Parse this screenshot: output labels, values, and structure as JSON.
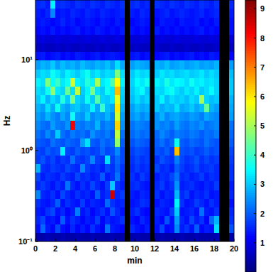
{
  "chart_data": {
    "type": "heatmap",
    "xlabel": "min",
    "ylabel": "Hz",
    "log": "y",
    "color": "jet",
    "xlim": [
      0,
      20
    ],
    "ylim": [
      0.1,
      45
    ],
    "xticks": [
      0,
      2,
      4,
      6,
      8,
      10,
      12,
      14,
      16,
      18,
      20
    ],
    "yticks": [
      {
        "value": 0.1,
        "label": "10⁻¹"
      },
      {
        "value": 1,
        "label": "10⁰"
      },
      {
        "value": 10,
        "label": "10¹"
      }
    ],
    "x_bins": [
      0,
      0.5,
      1,
      1.5,
      2,
      2.5,
      3,
      3.5,
      4,
      4.5,
      5,
      5.5,
      6,
      6.5,
      7,
      7.5,
      8,
      8.5,
      9,
      9.5,
      10,
      10.5,
      11,
      11.5,
      12,
      12.5,
      13,
      13.5,
      14,
      14.5,
      15,
      15.5,
      16,
      16.5,
      17,
      17.5,
      18,
      18.5,
      19,
      19.5,
      20
    ],
    "y_bins": [
      0.1,
      0.1244,
      0.1547,
      0.1925,
      0.2394,
      0.2979,
      0.3705,
      0.4609,
      0.5733,
      0.7132,
      0.8872,
      1.104,
      1.373,
      1.708,
      2.125,
      2.643,
      3.288,
      4.09,
      5.088,
      6.329,
      7.874,
      9.795,
      12.18,
      15.16,
      18.86,
      23.46,
      29.18,
      36.3,
      45
    ],
    "values": [
      [
        0.4,
        0.4,
        0.5,
        0.4,
        0.4,
        0.5,
        0.4,
        0.4,
        0.5,
        0.4,
        0.4,
        0.5,
        0.4,
        0.4,
        0.4,
        0.5,
        0.4,
        0.4,
        null,
        0.4,
        0.5,
        0.4,
        0.4,
        null,
        0.4,
        0.5,
        0.4,
        0.4,
        0.4,
        0.5,
        0.4,
        0.4,
        0.5,
        0.4,
        0.4,
        0.4,
        0.5,
        null,
        null,
        0.4
      ],
      [
        1.3,
        2.1,
        1.4,
        1.2,
        1.8,
        1.3,
        1.1,
        1.5,
        1.2,
        1.4,
        1.2,
        1.6,
        1.3,
        1.1,
        2.2,
        1.4,
        1.3,
        1.2,
        null,
        1.5,
        1.3,
        1.2,
        1.4,
        null,
        1.3,
        1.8,
        1.2,
        1.3,
        2.4,
        1.4,
        1.6,
        1.3,
        2.0,
        1.2,
        1.4,
        1.3,
        3.2,
        null,
        null,
        1.9
      ],
      [
        1.5,
        1.8,
        1.3,
        1.4,
        1.2,
        2.0,
        1.3,
        1.6,
        1.4,
        1.2,
        1.4,
        1.3,
        1.7,
        1.2,
        1.5,
        1.3,
        1.4,
        1.6,
        null,
        1.3,
        1.2,
        1.5,
        1.3,
        null,
        1.4,
        1.2,
        1.9,
        1.3,
        2.6,
        1.5,
        1.3,
        1.8,
        1.4,
        1.6,
        1.2,
        2.1,
        2.8,
        null,
        null,
        1.6
      ],
      [
        1.4,
        1.3,
        1.6,
        1.8,
        1.3,
        1.5,
        1.2,
        1.4,
        2.3,
        1.3,
        1.5,
        1.2,
        1.4,
        1.6,
        1.3,
        1.9,
        1.5,
        1.3,
        null,
        1.4,
        1.6,
        1.3,
        1.2,
        null,
        1.5,
        1.4,
        1.3,
        1.7,
        3.0,
        1.3,
        1.4,
        1.5,
        1.3,
        2.2,
        1.4,
        1.3,
        1.6,
        null,
        null,
        1.5
      ],
      [
        1.6,
        1.4,
        1.3,
        1.5,
        2.0,
        1.3,
        1.6,
        1.4,
        1.3,
        1.7,
        1.3,
        1.5,
        1.4,
        1.3,
        2.1,
        1.6,
        1.4,
        1.5,
        null,
        1.3,
        1.4,
        1.6,
        1.5,
        null,
        1.3,
        1.5,
        1.4,
        1.3,
        3.4,
        1.6,
        1.3,
        1.4,
        1.7,
        1.5,
        1.3,
        1.6,
        1.4,
        null,
        null,
        1.3
      ],
      [
        2.4,
        1.5,
        1.4,
        1.6,
        1.3,
        1.8,
        1.5,
        1.3,
        1.6,
        1.4,
        1.5,
        1.3,
        2.0,
        1.4,
        1.6,
        8.6,
        1.5,
        1.7,
        null,
        1.4,
        1.3,
        1.5,
        1.4,
        null,
        1.6,
        1.3,
        1.5,
        1.4,
        2.8,
        1.5,
        1.7,
        1.3,
        1.5,
        1.4,
        1.6,
        1.3,
        1.4,
        null,
        null,
        1.5
      ],
      [
        1.5,
        1.7,
        1.5,
        1.3,
        1.6,
        1.4,
        2.2,
        1.5,
        1.3,
        1.6,
        1.4,
        1.8,
        1.5,
        1.3,
        1.7,
        3.0,
        1.6,
        1.4,
        null,
        1.5,
        1.6,
        1.4,
        1.3,
        null,
        1.5,
        1.7,
        1.4,
        1.6,
        2.5,
        1.4,
        1.5,
        1.6,
        1.4,
        1.3,
        1.5,
        1.4,
        1.7,
        null,
        null,
        1.4
      ],
      [
        1.8,
        1.4,
        1.6,
        1.5,
        1.4,
        1.7,
        1.5,
        1.4,
        1.8,
        1.5,
        1.6,
        1.4,
        1.5,
        2.0,
        1.4,
        1.6,
        2.2,
        1.5,
        null,
        1.6,
        1.4,
        1.7,
        1.5,
        null,
        1.4,
        1.6,
        1.5,
        1.8,
        2.2,
        1.5,
        1.6,
        1.4,
        1.5,
        1.7,
        1.4,
        1.6,
        1.5,
        null,
        null,
        1.6
      ],
      [
        2.8,
        1.6,
        1.5,
        1.7,
        1.6,
        1.5,
        1.8,
        1.6,
        1.5,
        2.4,
        1.7,
        1.5,
        1.6,
        1.4,
        1.8,
        1.6,
        2.0,
        1.6,
        null,
        1.5,
        1.7,
        1.5,
        1.6,
        null,
        1.8,
        1.5,
        1.6,
        1.4,
        2.0,
        1.7,
        1.5,
        1.6,
        1.8,
        1.5,
        1.6,
        1.7,
        1.5,
        null,
        null,
        1.6
      ],
      [
        1.7,
        1.9,
        1.6,
        1.8,
        1.5,
        1.7,
        1.6,
        2.2,
        1.7,
        1.6,
        1.8,
        2.4,
        1.7,
        1.6,
        3.2,
        1.7,
        2.1,
        1.8,
        null,
        1.6,
        1.8,
        1.6,
        1.7,
        null,
        1.6,
        1.9,
        1.7,
        1.6,
        2.3,
        1.8,
        1.6,
        1.7,
        1.9,
        1.6,
        1.8,
        1.6,
        1.7,
        null,
        null,
        1.7
      ],
      [
        1.8,
        1.7,
        2.0,
        1.8,
        1.9,
        3.4,
        1.8,
        1.7,
        2.0,
        1.8,
        1.9,
        1.7,
        1.8,
        2.1,
        1.8,
        1.9,
        2.4,
        1.8,
        null,
        1.7,
        1.9,
        1.8,
        1.7,
        null,
        1.9,
        1.8,
        2.0,
        1.7,
        6.4,
        1.9,
        1.8,
        1.9,
        1.7,
        1.8,
        2.0,
        1.8,
        1.9,
        null,
        null,
        1.8
      ],
      [
        2.0,
        1.9,
        1.8,
        2.2,
        2.0,
        1.9,
        2.1,
        2.0,
        1.9,
        2.6,
        3.2,
        2.0,
        1.9,
        2.2,
        2.0,
        2.1,
        4.8,
        2.0,
        null,
        1.9,
        2.1,
        2.0,
        1.9,
        null,
        2.0,
        2.2,
        1.9,
        2.1,
        3.6,
        2.0,
        1.9,
        2.1,
        2.0,
        1.9,
        2.2,
        2.0,
        1.9,
        null,
        null,
        2.0
      ],
      [
        2.2,
        2.0,
        2.4,
        2.1,
        3.0,
        2.2,
        2.0,
        2.3,
        2.1,
        2.2,
        2.0,
        2.5,
        2.2,
        2.1,
        2.3,
        2.0,
        5.2,
        2.2,
        null,
        2.1,
        2.3,
        2.1,
        2.2,
        null,
        2.1,
        2.4,
        2.2,
        2.0,
        2.3,
        2.2,
        2.1,
        2.3,
        2.2,
        2.0,
        2.2,
        2.1,
        2.3,
        null,
        null,
        2.1
      ],
      [
        2.4,
        2.2,
        2.1,
        2.6,
        2.3,
        2.2,
        2.5,
        8.2,
        2.3,
        2.2,
        2.4,
        2.3,
        2.8,
        2.2,
        2.4,
        2.3,
        6.2,
        2.5,
        null,
        2.2,
        2.4,
        2.3,
        2.2,
        null,
        2.5,
        2.3,
        2.4,
        2.2,
        2.6,
        2.3,
        2.2,
        2.4,
        2.3,
        2.5,
        2.2,
        2.3,
        2.4,
        null,
        null,
        2.2
      ],
      [
        2.6,
        2.4,
        2.8,
        2.5,
        2.3,
        2.7,
        2.4,
        3.6,
        2.6,
        2.5,
        3.0,
        2.4,
        2.6,
        2.5,
        2.8,
        2.4,
        5.4,
        2.6,
        null,
        2.5,
        2.7,
        2.4,
        2.6,
        null,
        2.5,
        2.8,
        2.4,
        2.6,
        2.7,
        2.5,
        2.4,
        2.6,
        2.5,
        2.3,
        2.7,
        2.5,
        2.4,
        null,
        null,
        2.6
      ],
      [
        2.8,
        2.6,
        3.2,
        2.7,
        3.6,
        2.8,
        2.6,
        2.9,
        3.0,
        2.7,
        2.8,
        3.4,
        2.7,
        4.0,
        2.9,
        2.7,
        6.0,
        2.8,
        null,
        2.6,
        2.9,
        2.7,
        2.8,
        null,
        3.0,
        2.7,
        2.9,
        2.8,
        3.2,
        2.7,
        2.8,
        3.0,
        2.7,
        2.9,
        4.4,
        2.8,
        2.6,
        null,
        null,
        2.7
      ],
      [
        3.0,
        3.4,
        2.8,
        3.2,
        2.9,
        3.8,
        3.0,
        4.6,
        3.1,
        2.9,
        3.6,
        3.0,
        4.2,
        3.1,
        3.0,
        3.3,
        5.6,
        3.0,
        null,
        2.9,
        3.2,
        2.9,
        3.1,
        null,
        3.0,
        3.4,
        2.9,
        3.2,
        3.0,
        3.1,
        2.9,
        3.2,
        3.0,
        5.0,
        3.1,
        2.9,
        3.0,
        null,
        null,
        2.8
      ],
      [
        3.2,
        3.0,
        3.6,
        4.8,
        3.3,
        3.1,
        4.4,
        3.2,
        5.2,
        3.0,
        3.4,
        4.6,
        3.2,
        3.0,
        3.6,
        3.3,
        6.4,
        3.1,
        null,
        3.0,
        3.3,
        3.5,
        3.0,
        null,
        3.2,
        3.1,
        3.4,
        3.6,
        3.2,
        3.0,
        3.3,
        3.1,
        3.4,
        3.0,
        3.2,
        3.5,
        3.1,
        null,
        null,
        3.0
      ],
      [
        3.4,
        3.2,
        4.6,
        3.5,
        4.0,
        3.3,
        3.6,
        5.4,
        3.4,
        3.2,
        3.8,
        3.4,
        5.0,
        3.3,
        3.5,
        4.2,
        5.8,
        3.4,
        null,
        3.1,
        3.5,
        3.3,
        3.6,
        null,
        3.4,
        3.2,
        3.7,
        3.3,
        3.5,
        3.4,
        3.2,
        3.6,
        3.3,
        3.4,
        3.2,
        3.3,
        3.1,
        null,
        null,
        3.0
      ],
      [
        3.0,
        3.2,
        3.1,
        3.6,
        3.3,
        3.0,
        3.4,
        3.2,
        3.0,
        3.3,
        3.6,
        3.1,
        3.3,
        3.0,
        3.2,
        3.1,
        4.6,
        3.2,
        null,
        3.0,
        3.3,
        3.1,
        3.2,
        null,
        3.0,
        3.3,
        3.1,
        3.2,
        3.0,
        3.1,
        3.2,
        3.0,
        3.1,
        3.3,
        3.0,
        3.2,
        3.0,
        null,
        null,
        2.9
      ],
      [
        2.6,
        2.8,
        2.7,
        3.0,
        2.6,
        2.9,
        2.7,
        2.8,
        2.6,
        2.9,
        2.7,
        2.6,
        2.8,
        2.7,
        2.9,
        2.6,
        3.2,
        2.7,
        null,
        2.6,
        2.8,
        2.7,
        2.6,
        null,
        2.8,
        2.7,
        2.9,
        2.6,
        2.7,
        2.8,
        2.6,
        2.7,
        2.8,
        2.6,
        2.7,
        2.6,
        2.8,
        null,
        null,
        2.6
      ],
      [
        1.3,
        1.4,
        1.2,
        1.3,
        1.4,
        1.2,
        1.3,
        1.2,
        1.4,
        1.3,
        1.2,
        1.3,
        1.4,
        1.2,
        1.3,
        1.4,
        1.3,
        1.2,
        null,
        1.3,
        1.4,
        1.2,
        1.3,
        null,
        1.2,
        1.3,
        1.4,
        1.2,
        1.3,
        1.2,
        1.3,
        1.4,
        1.2,
        1.3,
        1.2,
        1.4,
        1.3,
        null,
        null,
        1.2
      ],
      [
        0.6,
        0.7,
        0.6,
        0.6,
        0.7,
        0.6,
        0.7,
        0.6,
        0.6,
        0.7,
        0.6,
        0.6,
        0.7,
        0.6,
        0.7,
        0.6,
        0.6,
        0.7,
        null,
        0.6,
        0.7,
        0.6,
        0.6,
        null,
        0.7,
        0.6,
        0.6,
        0.7,
        0.6,
        0.6,
        0.7,
        0.6,
        0.6,
        0.7,
        0.6,
        0.6,
        0.7,
        null,
        null,
        0.6
      ],
      [
        0.8,
        0.9,
        0.8,
        0.8,
        0.9,
        0.8,
        0.8,
        0.9,
        0.8,
        0.8,
        0.9,
        0.8,
        0.8,
        0.9,
        0.8,
        0.8,
        0.9,
        0.8,
        null,
        0.8,
        0.8,
        0.9,
        0.8,
        null,
        0.8,
        0.9,
        0.8,
        0.8,
        0.9,
        0.8,
        0.8,
        0.8,
        0.9,
        0.8,
        0.8,
        0.9,
        0.8,
        null,
        null,
        0.8
      ],
      [
        1.2,
        1.3,
        1.2,
        1.4,
        1.2,
        1.3,
        1.2,
        1.3,
        1.4,
        1.2,
        1.3,
        1.2,
        1.4,
        1.3,
        1.2,
        1.3,
        1.2,
        1.4,
        null,
        1.3,
        1.2,
        1.3,
        1.2,
        null,
        1.4,
        1.2,
        1.3,
        1.2,
        1.3,
        1.2,
        1.3,
        1.2,
        1.3,
        1.4,
        1.2,
        1.3,
        1.2,
        null,
        null,
        1.3
      ],
      [
        1.3,
        1.4,
        1.3,
        1.2,
        1.3,
        1.5,
        1.3,
        1.4,
        1.2,
        1.3,
        1.4,
        1.3,
        1.2,
        1.4,
        1.3,
        1.2,
        1.4,
        1.3,
        null,
        1.2,
        1.3,
        1.4,
        1.3,
        null,
        1.2,
        1.4,
        1.3,
        1.3,
        1.2,
        1.4,
        1.3,
        1.3,
        1.4,
        1.2,
        1.3,
        1.2,
        1.4,
        null,
        null,
        1.3
      ],
      [
        1.4,
        1.3,
        1.5,
        2.4,
        1.3,
        1.4,
        1.3,
        1.5,
        1.4,
        1.3,
        1.5,
        1.4,
        1.3,
        1.5,
        1.4,
        1.3,
        1.4,
        1.5,
        null,
        1.4,
        1.3,
        1.5,
        1.4,
        null,
        1.3,
        1.4,
        1.5,
        1.3,
        1.4,
        1.5,
        1.4,
        1.3,
        1.4,
        1.5,
        1.3,
        1.4,
        1.5,
        null,
        null,
        1.4
      ],
      [
        1.5,
        1.6,
        1.4,
        3.4,
        1.5,
        1.6,
        1.5,
        1.4,
        1.6,
        1.5,
        1.4,
        1.6,
        1.5,
        1.4,
        1.6,
        1.5,
        1.4,
        1.6,
        null,
        1.5,
        1.6,
        1.4,
        1.5,
        null,
        1.6,
        1.5,
        1.4,
        1.6,
        1.5,
        1.4,
        1.6,
        1.5,
        1.4,
        1.6,
        1.5,
        1.4,
        1.6,
        null,
        null,
        1.5
      ]
    ],
    "colorbar": {
      "range": [
        0,
        9.3
      ],
      "ticks": [
        1,
        2,
        3,
        4,
        5,
        6,
        7,
        8,
        9
      ]
    }
  }
}
